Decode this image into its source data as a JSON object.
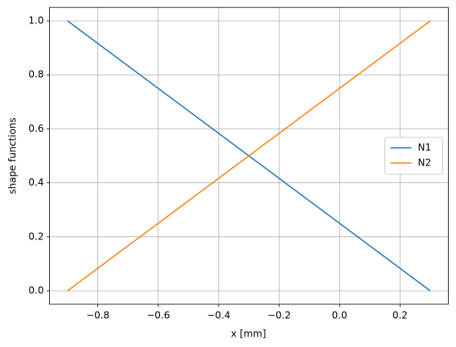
{
  "chart_data": {
    "type": "line",
    "x": [
      -0.9,
      0.3
    ],
    "series": [
      {
        "name": "N1",
        "color": "#1f77b4",
        "values": [
          1.0,
          0.0
        ]
      },
      {
        "name": "N2",
        "color": "#ff7f0e",
        "values": [
          0.0,
          1.0
        ]
      }
    ],
    "xlabel": "x [mm]",
    "ylabel": "shape functions",
    "xlim": [
      -0.96,
      0.36
    ],
    "xticks": [
      {
        "value": -0.8,
        "label": "−0.8"
      },
      {
        "value": -0.6,
        "label": "−0.6"
      },
      {
        "value": -0.4,
        "label": "−0.4"
      },
      {
        "value": -0.2,
        "label": "−0.2"
      },
      {
        "value": 0,
        "label": "0.0"
      },
      0.2
    ],
    "ylim": [
      -0.05,
      1.05
    ],
    "yticks": [
      {
        "value": 0,
        "label": "0.0"
      },
      0.2,
      0.4,
      0.6,
      0.8,
      {
        "value": 1,
        "label": "1.0"
      }
    ],
    "grid": true,
    "legend": "center right"
  }
}
